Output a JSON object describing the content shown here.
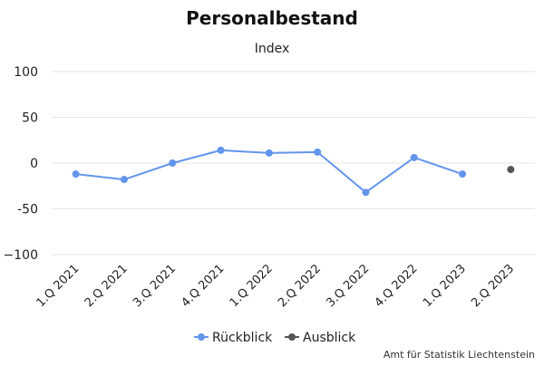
{
  "chart_data": {
    "type": "line",
    "title": "Personalbestand",
    "subtitle": "Index",
    "xlabel": "",
    "ylabel": "",
    "categories": [
      "1.Q 2021",
      "2.Q 2021",
      "3.Q 2021",
      "4.Q 2021",
      "1.Q 2022",
      "2.Q 2022",
      "3.Q 2022",
      "4.Q 2022",
      "1.Q 2023",
      "2.Q 2023"
    ],
    "ylim": [
      -100,
      100
    ],
    "yticks": [
      100,
      50,
      0,
      -50,
      -100
    ],
    "yticklabels": [
      "100",
      "50",
      "0",
      "-50",
      "−100"
    ],
    "grid": true,
    "legend_position": "bottom-center",
    "series": [
      {
        "name": "Rückblick",
        "color": "#6495ed",
        "style": "line-with-markers",
        "values": [
          -12,
          -18,
          0,
          14,
          11,
          12,
          -32,
          6,
          -12,
          null
        ]
      },
      {
        "name": "Ausblick",
        "color": "#555555",
        "style": "markers-only",
        "values": [
          null,
          null,
          null,
          null,
          null,
          null,
          null,
          null,
          null,
          -7
        ]
      }
    ],
    "credit": "Amt für Statistik Liechtenstein"
  }
}
